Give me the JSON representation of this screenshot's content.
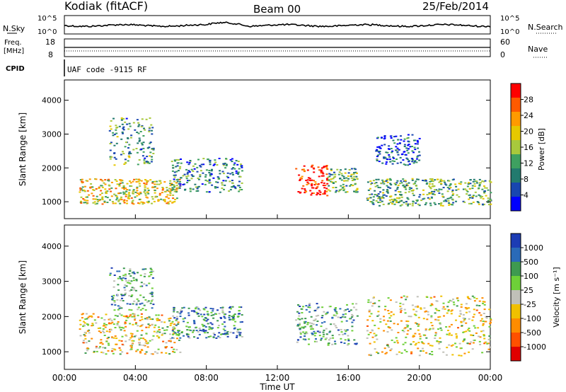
{
  "header": {
    "station": "Kodiak (fitACF)",
    "beam": "Beam 00",
    "date": "25/Feb/2014"
  },
  "noise_panel": {
    "left_label": "N.Sky",
    "right_label": "N.Search",
    "ticks": [
      "10^5",
      "10^0"
    ],
    "right_ticks": [
      "10^5",
      "10^0"
    ]
  },
  "freq_panel": {
    "left_label_1": "Freq.",
    "left_label_2": "[MHz]",
    "left_ticks": [
      "18",
      "8"
    ],
    "right_label": "Nave",
    "right_ticks": [
      "60",
      "0"
    ]
  },
  "cpid": {
    "label": "CPID",
    "text": "UAF code -9115 RF"
  },
  "chart_data": [
    {
      "type": "heatmap",
      "name": "power",
      "ylabel": "Slant Range [km]",
      "ylim": [
        500,
        4600
      ],
      "yticks": [
        "4000",
        "3000",
        "2000",
        "1000"
      ],
      "xlim": [
        0,
        24
      ],
      "colorbar": {
        "label": "Power [dB]",
        "ticks": [
          "28",
          "24",
          "20",
          "16",
          "12",
          "8",
          "4"
        ],
        "colors": [
          "#ff0000",
          "#ff5a00",
          "#ff9a00",
          "#e6c800",
          "#a8c83c",
          "#3ea060",
          "#227a6e",
          "#1846b0",
          "#0000ff"
        ]
      },
      "regions": [
        {
          "t0": 0.8,
          "t1": 6.5,
          "r0": 950,
          "r1": 1700,
          "level": 0.6
        },
        {
          "t0": 2.5,
          "t1": 5.0,
          "r0": 2100,
          "r1": 3500,
          "level": 0.35
        },
        {
          "t0": 6.0,
          "t1": 10.0,
          "r0": 1300,
          "r1": 2300,
          "level": 0.3
        },
        {
          "t0": 13.0,
          "t1": 14.8,
          "r0": 1200,
          "r1": 2100,
          "level": 0.95
        },
        {
          "t0": 14.8,
          "t1": 16.5,
          "r0": 1300,
          "r1": 2000,
          "level": 0.4
        },
        {
          "t0": 17.0,
          "t1": 24.0,
          "r0": 900,
          "r1": 1700,
          "level": 0.4
        },
        {
          "t0": 17.5,
          "t1": 20.0,
          "r0": 2100,
          "r1": 3000,
          "level": 0.2
        }
      ]
    },
    {
      "type": "heatmap",
      "name": "velocity",
      "ylabel": "Slant Range [km]",
      "ylim": [
        500,
        4600
      ],
      "yticks": [
        "4000",
        "3000",
        "2000",
        "1000"
      ],
      "xlim": [
        0,
        24
      ],
      "xticks": [
        "00:00",
        "04:00",
        "08:00",
        "12:00",
        "16:00",
        "20:00",
        "00:00"
      ],
      "xlabel": "Time UT",
      "colorbar": {
        "label": "Velocity [m s⁻¹]",
        "ticks": [
          "1000",
          "500",
          "100",
          "25",
          "-25",
          "-100",
          "-500",
          "-1000"
        ],
        "colors": [
          "#1c3cb4",
          "#2a6ab8",
          "#3e9a50",
          "#6ed038",
          "#c0c0b8",
          "#f0c000",
          "#ff8c00",
          "#ff5000",
          "#e00000"
        ]
      },
      "regions": [
        {
          "t0": 0.8,
          "t1": 6.5,
          "r0": 950,
          "r1": 2100,
          "level": 0.45
        },
        {
          "t0": 2.5,
          "t1": 5.0,
          "r0": 2200,
          "r1": 3400,
          "level": 0.7
        },
        {
          "t0": 6.0,
          "t1": 10.0,
          "r0": 1400,
          "r1": 2300,
          "level": 0.75
        },
        {
          "t0": 13.0,
          "t1": 16.5,
          "r0": 1200,
          "r1": 2400,
          "level": 0.7
        },
        {
          "t0": 17.0,
          "t1": 24.0,
          "r0": 900,
          "r1": 2600,
          "level": 0.45
        }
      ]
    }
  ]
}
